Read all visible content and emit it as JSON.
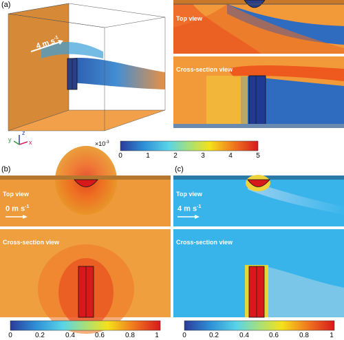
{
  "panels": {
    "a": {
      "label": "(a)",
      "speed": {
        "value": "4 m s",
        "exp": "-1"
      },
      "top_view_label": "Top view",
      "cross_section_label": "Cross-section view",
      "axes": {
        "x": "x",
        "y": "y",
        "z": "z"
      },
      "colorbar": {
        "multiplier": "×10",
        "multiplier_exp": "-3",
        "ticks": [
          "0",
          "1",
          "2",
          "3",
          "4",
          "5"
        ]
      }
    },
    "b": {
      "label": "(b)",
      "speed": {
        "value": "0 m s",
        "exp": "-1"
      },
      "top_view_label": "Top view",
      "cross_section_label": "Cross-section view",
      "colorbar": {
        "ticks": [
          "0",
          "0.2",
          "0.4",
          "0.6",
          "0.8",
          "1"
        ]
      }
    },
    "c": {
      "label": "(c)",
      "speed": {
        "value": "4 m s",
        "exp": "-1"
      },
      "top_view_label": "Top view",
      "cross_section_label": "Cross-section view",
      "colorbar": {
        "ticks": [
          "0",
          "0.2",
          "0.4",
          "0.6",
          "0.8",
          "1"
        ]
      }
    }
  },
  "colors": {
    "colormap": [
      "#2b3b9a",
      "#2e8fd6",
      "#59d4e8",
      "#a6e07a",
      "#f5e11a",
      "#f07a1e",
      "#d7191c"
    ]
  }
}
